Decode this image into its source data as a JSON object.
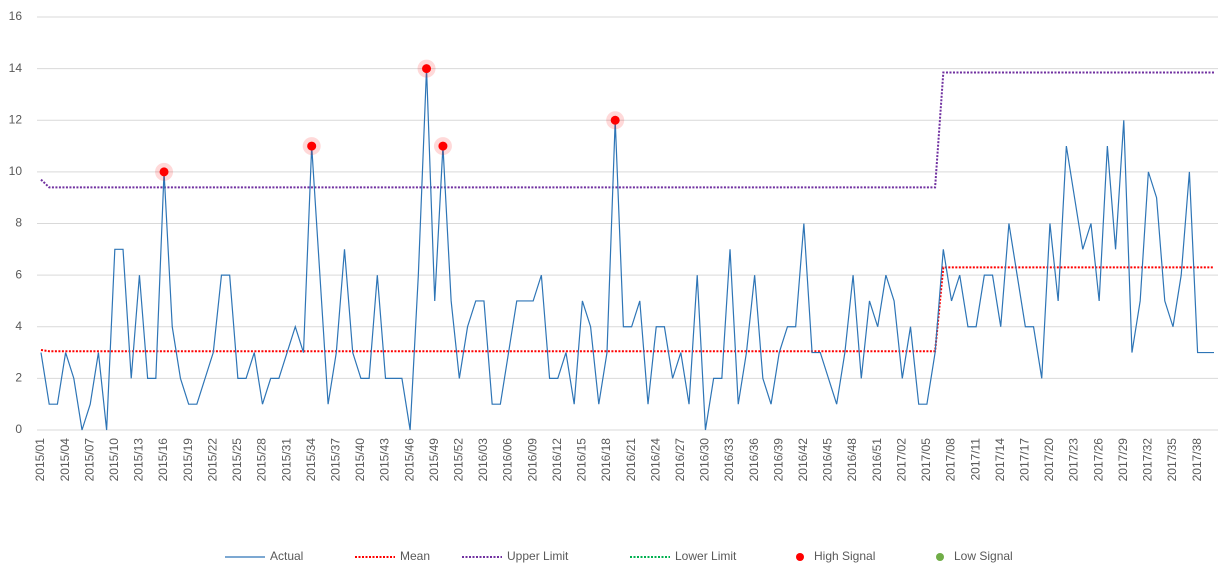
{
  "chart_data": {
    "type": "line",
    "categories": [
      "2015/01",
      null,
      null,
      "2015/04",
      null,
      null,
      "2015/07",
      null,
      null,
      "2015/10",
      null,
      null,
      "2015/13",
      null,
      null,
      "2015/16",
      null,
      null,
      "2015/19",
      null,
      null,
      "2015/22",
      null,
      null,
      "2015/25",
      null,
      null,
      "2015/28",
      null,
      null,
      "2015/31",
      null,
      null,
      "2015/34",
      null,
      null,
      "2015/37",
      null,
      null,
      "2015/40",
      null,
      null,
      "2015/43",
      null,
      null,
      "2015/46",
      null,
      null,
      "2015/49",
      null,
      null,
      "2015/52",
      null,
      null,
      "2016/03",
      null,
      null,
      "2016/06",
      null,
      null,
      "2016/09",
      null,
      null,
      "2016/12",
      null,
      null,
      "2016/15",
      null,
      null,
      "2016/18",
      null,
      null,
      "2016/21",
      null,
      null,
      "2016/24",
      null,
      null,
      "2016/27",
      null,
      null,
      "2016/30",
      null,
      null,
      "2016/33",
      null,
      null,
      "2016/36",
      null,
      null,
      "2016/39",
      null,
      null,
      "2016/42",
      null,
      null,
      "2016/45",
      null,
      null,
      "2016/48",
      null,
      null,
      "2016/51",
      null,
      null,
      "2017/02",
      null,
      null,
      "2017/05",
      null,
      null,
      "2017/08",
      null,
      null,
      "2017/11",
      null,
      null,
      "2017/14",
      null,
      null,
      "2017/17",
      null,
      null,
      "2017/20",
      null,
      null,
      "2017/23",
      null,
      null,
      "2017/26",
      null,
      null,
      "2017/29",
      null,
      null,
      "2017/32",
      null,
      null,
      "2017/35",
      null,
      null,
      "2017/38",
      null,
      null
    ],
    "series": [
      {
        "name": "Actual",
        "color": "#2e75b6",
        "style": "solid",
        "values": [
          3,
          1,
          1,
          3,
          2,
          0,
          1,
          3,
          0,
          7,
          7,
          2,
          6,
          2,
          2,
          10,
          4,
          2,
          1,
          1,
          2,
          3,
          6,
          6,
          2,
          2,
          3,
          1,
          2,
          2,
          3,
          4,
          3,
          11,
          6,
          1,
          3,
          7,
          3,
          2,
          2,
          6,
          2,
          2,
          2,
          0,
          6,
          14,
          5,
          11,
          5,
          2,
          4,
          5,
          5,
          1,
          1,
          3,
          5,
          5,
          5,
          6,
          2,
          2,
          3,
          1,
          5,
          4,
          1,
          3,
          12,
          4,
          4,
          5,
          1,
          4,
          4,
          2,
          3,
          1,
          6,
          0,
          2,
          2,
          7,
          1,
          3,
          6,
          2,
          1,
          3,
          4,
          4,
          8,
          3,
          3,
          2,
          1,
          3,
          6,
          2,
          5,
          4,
          6,
          5,
          2,
          4,
          1,
          1,
          3,
          7,
          5,
          6,
          4,
          4,
          6,
          6,
          4,
          8,
          6,
          4,
          4,
          2,
          8,
          5,
          11,
          9,
          7,
          8,
          5,
          11,
          7,
          12,
          3,
          5,
          10,
          9,
          5,
          4,
          6,
          10,
          3,
          3,
          3
        ]
      },
      {
        "name": "Mean",
        "color": "#ff0000",
        "style": "dotted",
        "values": [
          3.1,
          3.05,
          3.05,
          3.05,
          3.05,
          3.05,
          3.05,
          3.05,
          3.05,
          3.05,
          3.05,
          3.05,
          3.05,
          3.05,
          3.05,
          3.05,
          3.05,
          3.05,
          3.05,
          3.05,
          3.05,
          3.05,
          3.05,
          3.05,
          3.05,
          3.05,
          3.05,
          3.05,
          3.05,
          3.05,
          3.05,
          3.05,
          3.05,
          3.05,
          3.05,
          3.05,
          3.05,
          3.05,
          3.05,
          3.05,
          3.05,
          3.05,
          3.05,
          3.05,
          3.05,
          3.05,
          3.05,
          3.05,
          3.05,
          3.05,
          3.05,
          3.05,
          3.05,
          3.05,
          3.05,
          3.05,
          3.05,
          3.05,
          3.05,
          3.05,
          3.05,
          3.05,
          3.05,
          3.05,
          3.05,
          3.05,
          3.05,
          3.05,
          3.05,
          3.05,
          3.05,
          3.05,
          3.05,
          3.05,
          3.05,
          3.05,
          3.05,
          3.05,
          3.05,
          3.05,
          3.05,
          3.05,
          3.05,
          3.05,
          3.05,
          3.05,
          3.05,
          3.05,
          3.05,
          3.05,
          3.05,
          3.05,
          3.05,
          3.05,
          3.05,
          3.05,
          3.05,
          3.05,
          3.05,
          3.05,
          3.05,
          3.05,
          3.05,
          3.05,
          3.05,
          3.05,
          3.05,
          3.05,
          3.05,
          3.05,
          6.3,
          6.3,
          6.3,
          6.3,
          6.3,
          6.3,
          6.3,
          6.3,
          6.3,
          6.3,
          6.3,
          6.3,
          6.3,
          6.3,
          6.3,
          6.3,
          6.3,
          6.3,
          6.3,
          6.3,
          6.3,
          6.3,
          6.3,
          6.3,
          6.3,
          6.3,
          6.3,
          6.3,
          6.3,
          6.3,
          6.3,
          6.3,
          6.3,
          6.3
        ]
      },
      {
        "name": "Upper Limit",
        "color": "#7030a0",
        "style": "dotted",
        "values": [
          9.7,
          9.4,
          9.4,
          9.4,
          9.4,
          9.4,
          9.4,
          9.4,
          9.4,
          9.4,
          9.4,
          9.4,
          9.4,
          9.4,
          9.4,
          9.4,
          9.4,
          9.4,
          9.4,
          9.4,
          9.4,
          9.4,
          9.4,
          9.4,
          9.4,
          9.4,
          9.4,
          9.4,
          9.4,
          9.4,
          9.4,
          9.4,
          9.4,
          9.4,
          9.4,
          9.4,
          9.4,
          9.4,
          9.4,
          9.4,
          9.4,
          9.4,
          9.4,
          9.4,
          9.4,
          9.4,
          9.4,
          9.4,
          9.4,
          9.4,
          9.4,
          9.4,
          9.4,
          9.4,
          9.4,
          9.4,
          9.4,
          9.4,
          9.4,
          9.4,
          9.4,
          9.4,
          9.4,
          9.4,
          9.4,
          9.4,
          9.4,
          9.4,
          9.4,
          9.4,
          9.4,
          9.4,
          9.4,
          9.4,
          9.4,
          9.4,
          9.4,
          9.4,
          9.4,
          9.4,
          9.4,
          9.4,
          9.4,
          9.4,
          9.4,
          9.4,
          9.4,
          9.4,
          9.4,
          9.4,
          9.4,
          9.4,
          9.4,
          9.4,
          9.4,
          9.4,
          9.4,
          9.4,
          9.4,
          9.4,
          9.4,
          9.4,
          9.4,
          9.4,
          9.4,
          9.4,
          9.4,
          9.4,
          9.4,
          9.4,
          13.85,
          13.85,
          13.85,
          13.85,
          13.85,
          13.85,
          13.85,
          13.85,
          13.85,
          13.85,
          13.85,
          13.85,
          13.85,
          13.85,
          13.85,
          13.85,
          13.85,
          13.85,
          13.85,
          13.85,
          13.85,
          13.85,
          13.85,
          13.85,
          13.85,
          13.85,
          13.85,
          13.85,
          13.85,
          13.85,
          13.85,
          13.85,
          13.85,
          13.85
        ]
      },
      {
        "name": "Lower Limit",
        "color": "#00b050",
        "style": "dotted",
        "values": [
          null,
          null,
          null,
          null,
          null,
          null,
          null,
          null,
          null,
          null,
          null,
          null,
          null,
          null,
          null,
          null,
          null,
          null,
          null,
          null,
          null,
          null,
          null,
          null,
          null,
          null,
          null,
          null,
          null,
          null,
          null,
          null,
          null,
          null,
          null,
          null,
          null,
          null,
          null,
          null,
          null,
          null,
          null,
          null,
          null,
          null,
          null,
          null,
          null,
          null,
          null,
          null,
          null,
          null,
          null,
          null,
          null,
          null,
          null,
          null,
          null,
          null,
          null,
          null,
          null,
          null,
          null,
          null,
          null,
          null,
          null,
          null,
          null,
          null,
          null,
          null,
          null,
          null,
          null,
          null,
          null,
          null,
          null,
          null,
          null,
          null,
          null,
          null,
          null,
          null,
          null,
          null,
          null,
          null,
          null,
          null,
          null,
          null,
          null,
          null,
          null,
          null,
          null,
          null,
          null,
          null,
          null,
          null,
          null,
          null,
          null,
          null,
          null,
          null,
          null,
          null,
          null,
          null,
          null,
          null,
          null,
          null,
          null,
          null,
          null,
          null,
          null,
          null,
          null,
          null,
          null,
          null,
          null,
          null,
          null,
          null,
          null,
          null,
          null,
          null,
          null,
          null,
          null,
          null
        ]
      },
      {
        "name": "High Signal",
        "color": "#ff0000",
        "style": "marker",
        "values": [
          null,
          null,
          null,
          null,
          null,
          null,
          null,
          null,
          null,
          null,
          null,
          null,
          null,
          null,
          null,
          10,
          null,
          null,
          null,
          null,
          null,
          null,
          null,
          null,
          null,
          null,
          null,
          null,
          null,
          null,
          null,
          null,
          null,
          11,
          null,
          null,
          null,
          null,
          null,
          null,
          null,
          null,
          null,
          null,
          null,
          null,
          null,
          14,
          null,
          11,
          null,
          null,
          null,
          null,
          null,
          null,
          null,
          null,
          null,
          null,
          null,
          null,
          null,
          null,
          null,
          null,
          null,
          null,
          null,
          null,
          12,
          null,
          null,
          null,
          null,
          null,
          null,
          null,
          null,
          null,
          null,
          null,
          null,
          null,
          null,
          null,
          null,
          null,
          null,
          null,
          null,
          null,
          null,
          null,
          null,
          null,
          null,
          null,
          null,
          null,
          null,
          null,
          null,
          null,
          null,
          null,
          null,
          null,
          null,
          null,
          null,
          null,
          null,
          null,
          null,
          null,
          null,
          null,
          null,
          null,
          null,
          null,
          null,
          null,
          null,
          null,
          null,
          null,
          null,
          null,
          null,
          null,
          null,
          null,
          null,
          null,
          null,
          null,
          null,
          null,
          null,
          null,
          null,
          null
        ]
      },
      {
        "name": "Low Signal",
        "color": "#70ad47",
        "style": "marker",
        "values": [
          null,
          null,
          null,
          null,
          null,
          null,
          null,
          null,
          null,
          null,
          null,
          null,
          null,
          null,
          null,
          null,
          null,
          null,
          null,
          null,
          null,
          null,
          null,
          null,
          null,
          null,
          null,
          null,
          null,
          null,
          null,
          null,
          null,
          null,
          null,
          null,
          null,
          null,
          null,
          null,
          null,
          null,
          null,
          null,
          null,
          null,
          null,
          null,
          null,
          null,
          null,
          null,
          null,
          null,
          null,
          null,
          null,
          null,
          null,
          null,
          null,
          null,
          null,
          null,
          null,
          null,
          null,
          null,
          null,
          null,
          null,
          null,
          null,
          null,
          null,
          null,
          null,
          null,
          null,
          null,
          null,
          null,
          null,
          null,
          null,
          null,
          null,
          null,
          null,
          null,
          null,
          null,
          null,
          null,
          null,
          null,
          null,
          null,
          null,
          null,
          null,
          null,
          null,
          null,
          null,
          null,
          null,
          null,
          null,
          null,
          null,
          null,
          null,
          null,
          null,
          null,
          null,
          null,
          null,
          null,
          null,
          null,
          null,
          null,
          null,
          null,
          null,
          null,
          null,
          null,
          null,
          null,
          null,
          null,
          null,
          null,
          null,
          null,
          null,
          null,
          null,
          null,
          null,
          null
        ]
      }
    ],
    "ylim": [
      0,
      16
    ],
    "yticks": [
      0,
      2,
      4,
      6,
      8,
      10,
      12,
      14,
      16
    ],
    "grid": true,
    "legend": "bottom"
  }
}
